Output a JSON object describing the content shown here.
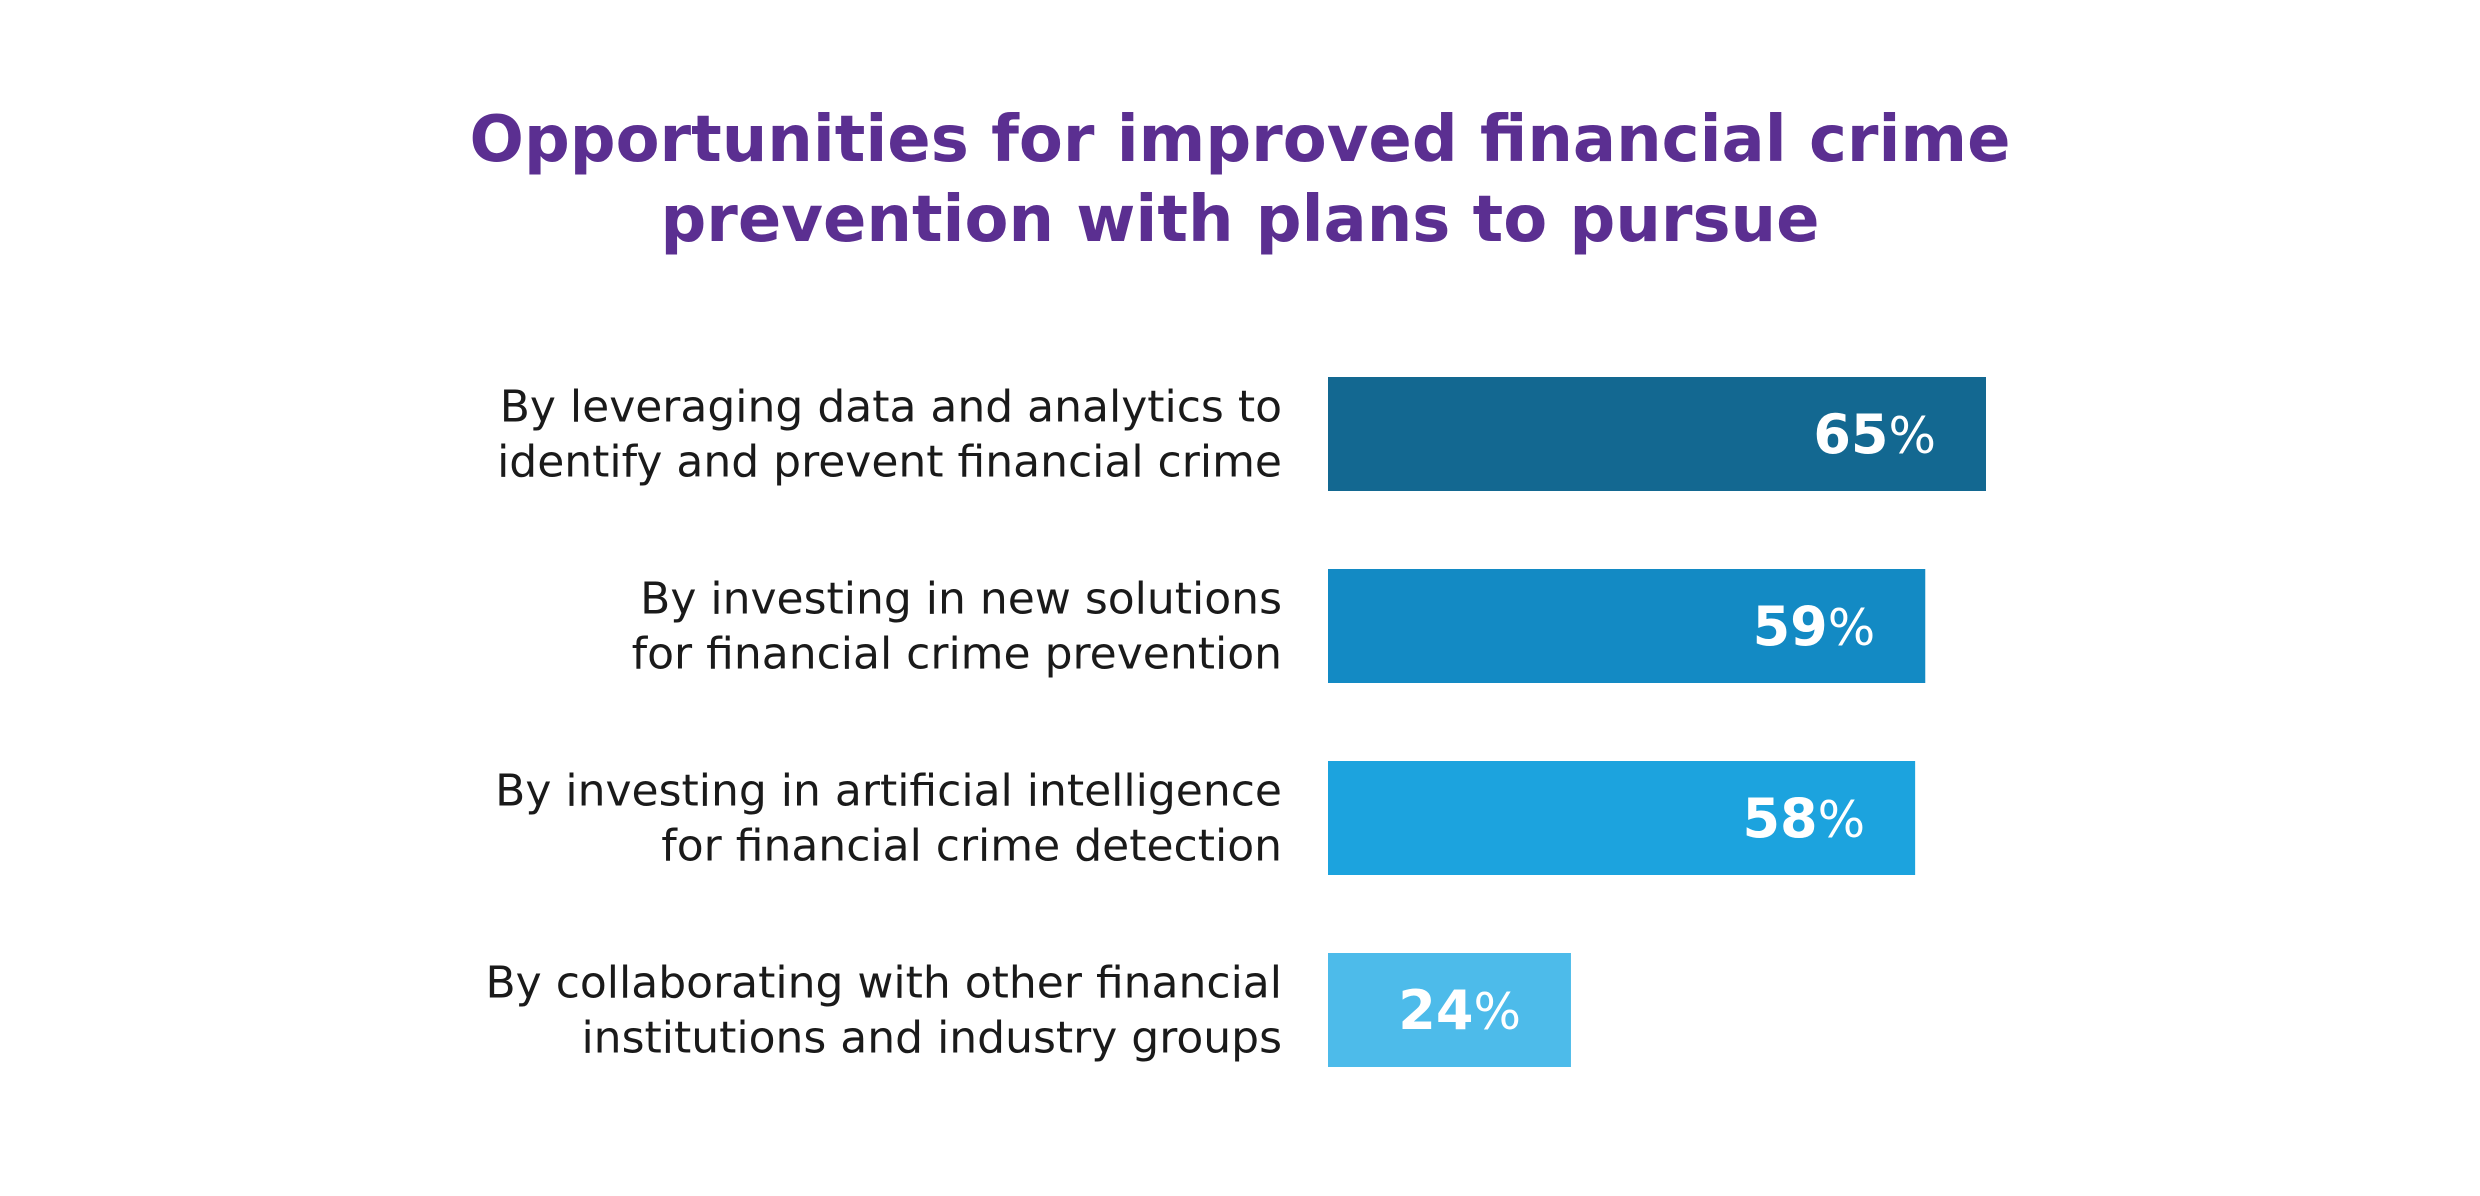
{
  "chart_data": {
    "type": "bar",
    "orientation": "horizontal",
    "title_lines": [
      "Opportunities for improved financial crime",
      "prevention with plans to pursue"
    ],
    "categories": [
      [
        "By leveraging data and analytics to",
        "identify and prevent financial crime"
      ],
      [
        "By investing in new solutions",
        "for financial crime prevention"
      ],
      [
        "By investing in artificial intelligence",
        "for financial crime detection"
      ],
      [
        "By collaborating with other financial",
        "institutions and industry groups"
      ]
    ],
    "values": [
      65,
      59,
      58,
      24
    ],
    "value_unit": "%",
    "xlim": [
      0,
      100
    ],
    "grid": false,
    "legend": "none",
    "colors": [
      "#136891",
      "#138ac4",
      "#1ca3de",
      "#4dbbea"
    ]
  }
}
